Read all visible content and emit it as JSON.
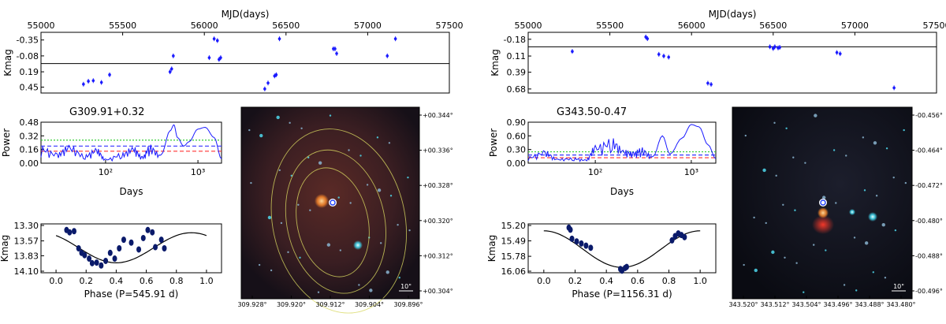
{
  "panels": [
    {
      "source": "G309.91+0.32",
      "lightcurve": {
        "xlabel": "MJD(days)",
        "ylabel": "Kmag",
        "xticks": [
          "55000",
          "55500",
          "56000",
          "56500",
          "57000",
          "57500"
        ],
        "yticks": [
          "-0.35",
          "-0.08",
          "0.19",
          "0.45"
        ],
        "xlim": [
          55000,
          57500
        ],
        "ylim": [
          -0.48,
          0.55
        ]
      },
      "periodogram": {
        "ylabel": "Power",
        "xlabel": "Days",
        "yticks": [
          "0.48",
          "0.32",
          "0.16",
          "0.00"
        ],
        "xticks": [
          "10²",
          "10³"
        ]
      },
      "folded": {
        "ylabel": "Kmag",
        "xlabel": "Phase (P=545.91 d)",
        "yticks": [
          "13.30",
          "13.57",
          "13.83",
          "14.10"
        ],
        "xticks": [
          "0.0",
          "0.2",
          "0.4",
          "0.6",
          "0.8",
          "1.0"
        ]
      },
      "image": {
        "ra_ticks": [
          "309.928°",
          "309.920°",
          "309.912°",
          "309.904°",
          "309.896°"
        ],
        "dec_ticks": [
          "+00.344°",
          "+00.336°",
          "+00.328°",
          "+00.320°",
          "+00.312°",
          "+00.304°"
        ],
        "scalebar": "10\""
      }
    },
    {
      "source": "G343.50-0.47",
      "lightcurve": {
        "xlabel": "MJD(days)",
        "ylabel": "Kmag",
        "xticks": [
          "55000",
          "55500",
          "56000",
          "56500",
          "57000",
          "57500"
        ],
        "yticks": [
          "-0.18",
          "0.11",
          "0.39",
          "0.68"
        ],
        "xlim": [
          55000,
          57500
        ],
        "ylim": [
          -0.3,
          0.75
        ]
      },
      "periodogram": {
        "ylabel": "Power",
        "xlabel": "Days",
        "yticks": [
          "0.90",
          "0.60",
          "0.30",
          "0.00"
        ],
        "xticks": [
          "10²",
          "10³"
        ]
      },
      "folded": {
        "ylabel": "Kmag",
        "xlabel": "Phase (P=1156.31 d)",
        "yticks": [
          "15.20",
          "15.49",
          "15.78",
          "16.06"
        ],
        "xticks": [
          "0.0",
          "0.2",
          "0.4",
          "0.6",
          "0.8",
          "1.0"
        ]
      },
      "image": {
        "ra_ticks": [
          "343.520°",
          "343.512°",
          "343.504°",
          "343.496°",
          "343.488°",
          "343.480°"
        ],
        "dec_ticks": [
          "-00.456°",
          "-00.464°",
          "-00.472°",
          "-00.480°",
          "-00.488°",
          "-00.496°"
        ],
        "scalebar": "10\""
      }
    }
  ],
  "chart_data": [
    {
      "type": "scatter",
      "title": "",
      "xlabel": "MJD(days)",
      "ylabel": "Kmag",
      "xlim": [
        55000,
        57500
      ],
      "ylim": [
        -0.48,
        0.55
      ],
      "y_inverted": true,
      "reference_line": 0.05,
      "x": [
        55260,
        55290,
        55320,
        55370,
        55420,
        55790,
        55800,
        55810,
        56030,
        56060,
        56080,
        56090,
        56100,
        56370,
        56390,
        56430,
        56440,
        56460,
        56790,
        56800,
        56810,
        57120,
        57170
      ],
      "y": [
        0.4,
        0.35,
        0.34,
        0.37,
        0.24,
        0.19,
        0.14,
        -0.08,
        -0.05,
        -0.37,
        -0.34,
        -0.02,
        -0.05,
        0.48,
        0.38,
        0.26,
        0.24,
        -0.37,
        -0.2,
        -0.2,
        -0.12,
        -0.08,
        -0.37
      ]
    },
    {
      "type": "line",
      "title": "",
      "xlabel": "Days",
      "ylabel": "Power",
      "xscale": "log",
      "xlim": [
        20,
        1800
      ],
      "ylim": [
        0,
        0.48
      ],
      "thresholds": [
        0.27,
        0.2,
        0.14
      ],
      "x": [
        20,
        30,
        40,
        60,
        80,
        100,
        150,
        200,
        250,
        300,
        400,
        500,
        550,
        600,
        700,
        800,
        1000,
        1200,
        1500,
        1800
      ],
      "y": [
        0.2,
        0.12,
        0.22,
        0.1,
        0.18,
        0.05,
        0.12,
        0.2,
        0.08,
        0.22,
        0.1,
        0.38,
        0.45,
        0.3,
        0.2,
        0.25,
        0.4,
        0.42,
        0.3,
        0.05
      ]
    },
    {
      "type": "scatter",
      "title": "",
      "xlabel": "Phase (P=545.91 d)",
      "ylabel": "Kmag",
      "xlim": [
        -0.1,
        1.1
      ],
      "ylim": [
        13.3,
        14.1
      ],
      "y_inverted": true,
      "x": [
        0.07,
        0.09,
        0.12,
        0.15,
        0.17,
        0.19,
        0.22,
        0.24,
        0.27,
        0.3,
        0.33,
        0.36,
        0.39,
        0.42,
        0.45,
        0.5,
        0.55,
        0.58,
        0.61,
        0.64,
        0.66,
        0.7,
        0.72
      ],
      "y": [
        13.38,
        13.42,
        13.4,
        13.7,
        13.78,
        13.82,
        13.88,
        13.96,
        13.95,
        14.0,
        13.92,
        13.78,
        13.88,
        13.7,
        13.55,
        13.6,
        13.72,
        13.52,
        13.38,
        13.42,
        13.68,
        13.55,
        13.7
      ]
    },
    {
      "type": "scatter",
      "title": "",
      "xlabel": "MJD(days)",
      "ylabel": "Kmag",
      "xlim": [
        55000,
        57500
      ],
      "ylim": [
        -0.3,
        0.75
      ],
      "y_inverted": true,
      "reference_line": -0.05,
      "x": [
        55270,
        55720,
        55730,
        55800,
        55830,
        55860,
        56100,
        56120,
        56480,
        56500,
        56510,
        56530,
        56540,
        56890,
        56910,
        57240
      ],
      "y": [
        0.03,
        -0.22,
        -0.19,
        0.08,
        0.11,
        0.13,
        0.58,
        0.6,
        -0.05,
        -0.02,
        -0.05,
        -0.03,
        -0.04,
        0.05,
        0.07,
        0.66
      ]
    },
    {
      "type": "line",
      "title": "",
      "xlabel": "Days",
      "ylabel": "Power",
      "xscale": "log",
      "xlim": [
        20,
        1800
      ],
      "ylim": [
        0,
        0.9
      ],
      "thresholds": [
        0.25,
        0.18,
        0.12
      ],
      "x": [
        20,
        30,
        40,
        60,
        80,
        100,
        150,
        200,
        250,
        300,
        400,
        500,
        600,
        800,
        1000,
        1200,
        1500,
        1800
      ],
      "y": [
        0.15,
        0.28,
        0.1,
        0.12,
        0.08,
        0.4,
        0.55,
        0.3,
        0.25,
        0.35,
        0.15,
        0.6,
        0.2,
        0.55,
        0.85,
        0.8,
        0.4,
        0.1
      ]
    },
    {
      "type": "scatter",
      "title": "",
      "xlabel": "Phase (P=1156.31 d)",
      "ylabel": "Kmag",
      "xlim": [
        -0.1,
        1.1
      ],
      "ylim": [
        15.2,
        16.06
      ],
      "y_inverted": true,
      "x": [
        0.16,
        0.17,
        0.18,
        0.21,
        0.24,
        0.27,
        0.3,
        0.49,
        0.5,
        0.52,
        0.53,
        0.82,
        0.84,
        0.86,
        0.88,
        0.9
      ],
      "y": [
        15.24,
        15.28,
        15.45,
        15.5,
        15.54,
        15.58,
        15.62,
        16.02,
        16.05,
        16.0,
        15.98,
        15.48,
        15.4,
        15.35,
        15.38,
        15.42
      ]
    }
  ]
}
